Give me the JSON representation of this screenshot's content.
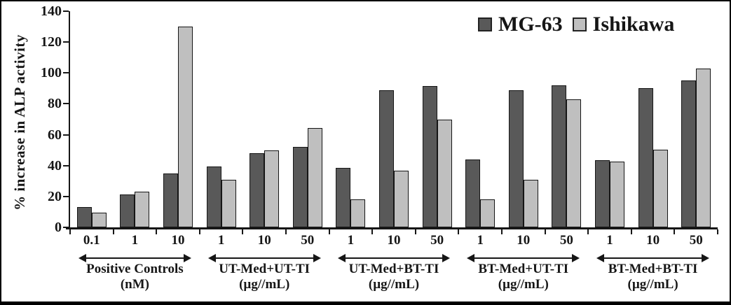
{
  "legend": {
    "items": [
      {
        "label": "MG-63",
        "color": "#595959"
      },
      {
        "label": "Ishikawa",
        "color": "#bfbfbf"
      }
    ]
  },
  "chart_data": {
    "type": "bar",
    "title": "",
    "xlabel": "",
    "ylabel": "% increase in ALP activity",
    "ylim": [
      0,
      140
    ],
    "yticks": [
      0,
      20,
      40,
      60,
      80,
      100,
      120,
      140
    ],
    "grid": false,
    "legend_position": "top-right-inside",
    "series_names": [
      "MG-63",
      "Ishikawa"
    ],
    "series_colors": [
      "#595959",
      "#bfbfbf"
    ],
    "groups": [
      {
        "label": "Positive Controls",
        "unit": "(nM)",
        "doses": [
          "0.1",
          "1",
          "10"
        ],
        "series": [
          {
            "name": "MG-63",
            "values": [
              13,
              21.5,
              35
            ]
          },
          {
            "name": "Ishikawa",
            "values": [
              9.5,
              23,
              130
            ]
          }
        ]
      },
      {
        "label": "UT-Med+UT-TI",
        "unit": "(µg//mL)",
        "doses": [
          "1",
          "10",
          "50"
        ],
        "series": [
          {
            "name": "MG-63",
            "values": [
              39.5,
              48,
              52
            ]
          },
          {
            "name": "Ishikawa",
            "values": [
              31,
              50,
              64.5
            ]
          }
        ]
      },
      {
        "label": "UT-Med+BT-TI",
        "unit": "(µg//mL)",
        "doses": [
          "1",
          "10",
          "50"
        ],
        "series": [
          {
            "name": "MG-63",
            "values": [
              38.5,
              89,
              91.5
            ]
          },
          {
            "name": "Ishikawa",
            "values": [
              18,
              36.5,
              70
            ]
          }
        ]
      },
      {
        "label": "BT-Med+UT-TI",
        "unit": "(µg//mL)",
        "doses": [
          "1",
          "10",
          "50"
        ],
        "series": [
          {
            "name": "MG-63",
            "values": [
              44,
              89,
              92
            ]
          },
          {
            "name": "Ishikawa",
            "values": [
              18,
              31,
              83
            ]
          }
        ]
      },
      {
        "label": "BT-Med+BT-TI",
        "unit": "(µg//mL)",
        "doses": [
          "1",
          "10",
          "50"
        ],
        "series": [
          {
            "name": "MG-63",
            "values": [
              43.5,
              90,
              95
            ]
          },
          {
            "name": "Ishikawa",
            "values": [
              42.5,
              50.5,
              103
            ]
          }
        ]
      }
    ]
  }
}
